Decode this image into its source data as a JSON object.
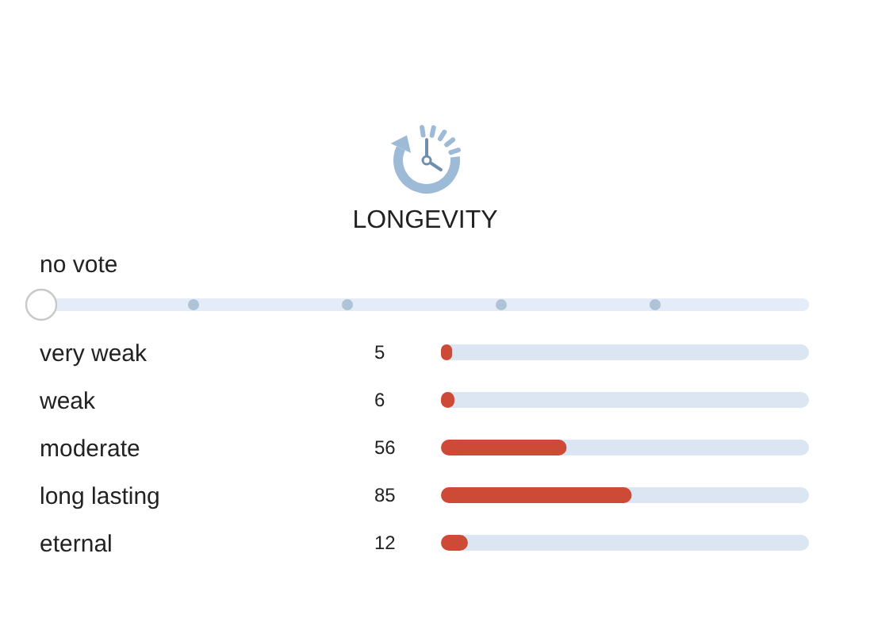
{
  "chart_data": {
    "type": "bar",
    "orientation": "horizontal",
    "title": "LONGEVITY",
    "categories": [
      "very weak",
      "weak",
      "moderate",
      "long lasting",
      "eternal"
    ],
    "values": [
      5,
      6,
      56,
      85,
      12
    ],
    "color": "#cc4a36",
    "xlim": [
      0,
      164
    ],
    "tick_labels": "y",
    "data_labels": true,
    "annotations": [
      "no vote"
    ]
  }
}
